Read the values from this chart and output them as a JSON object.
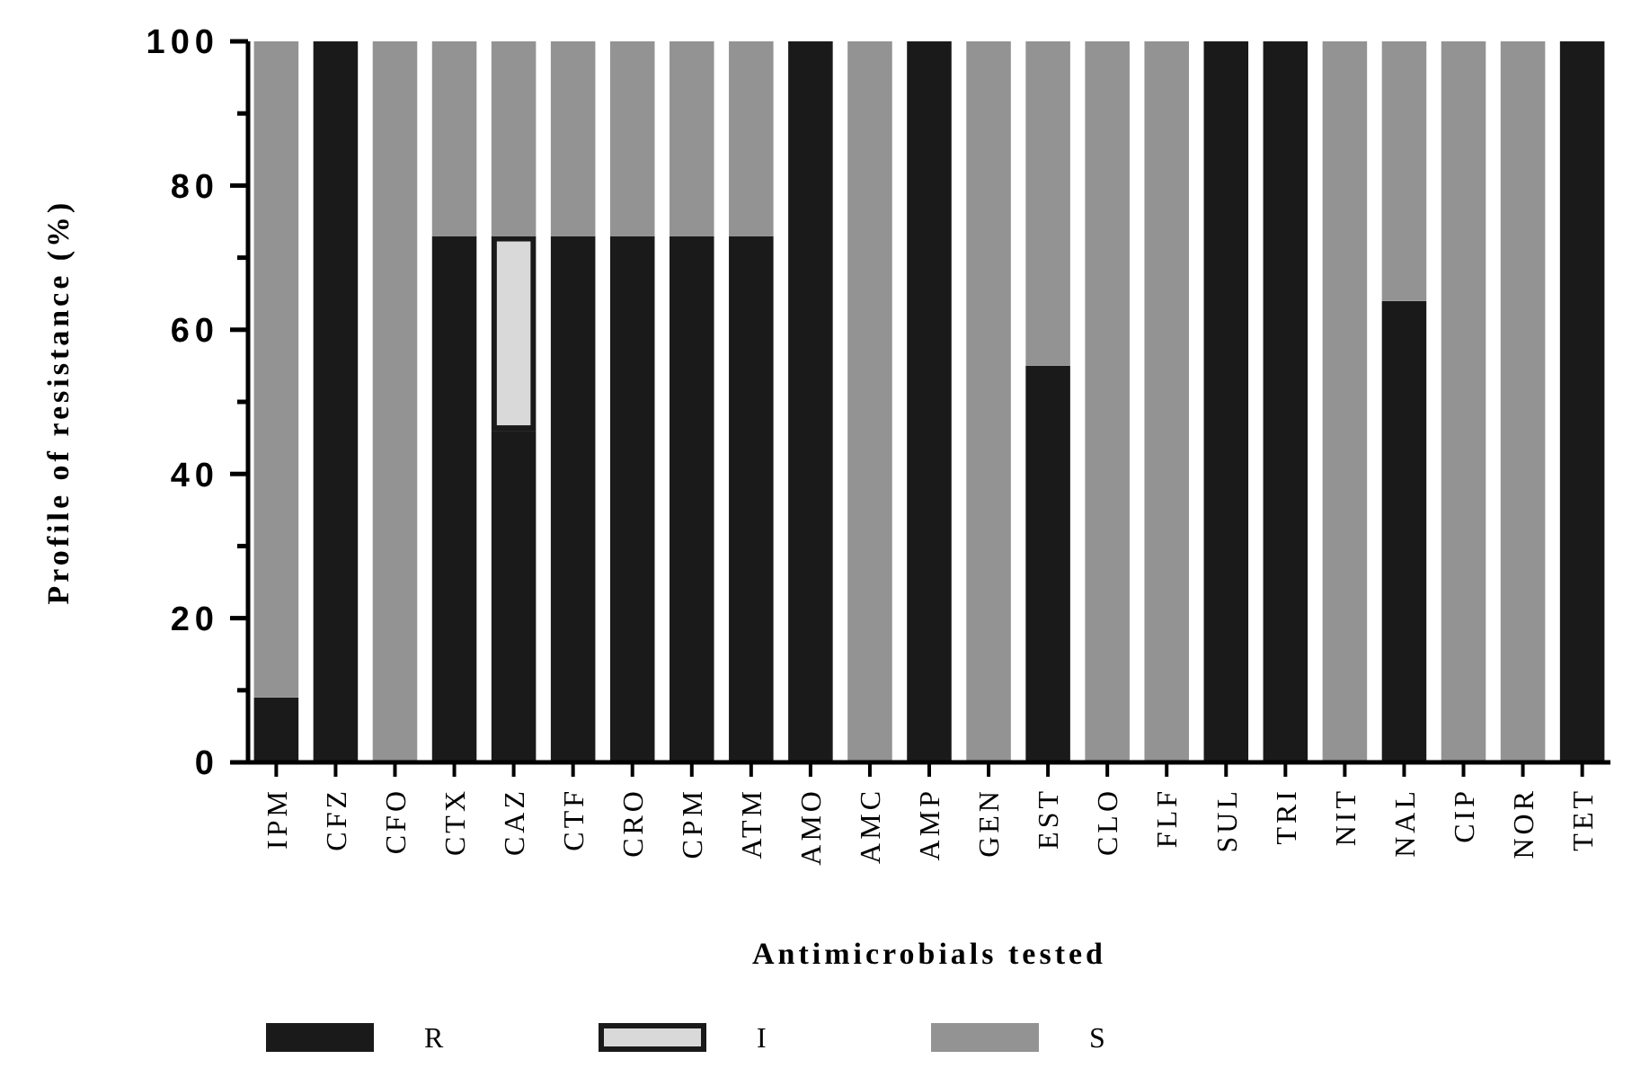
{
  "chart_data": {
    "type": "bar",
    "stacked": true,
    "xlabel": "Antimicrobials tested",
    "ylabel": "Profile of resistance (%)",
    "categories": [
      "IPM",
      "CFZ",
      "CFO",
      "CTX",
      "CAZ",
      "CTF",
      "CRO",
      "CPM",
      "ATM",
      "AMO",
      "AMC",
      "AMP",
      "GEN",
      "EST",
      "CLO",
      "FLF",
      "SUL",
      "TRI",
      "NIT",
      "NAL",
      "CIP",
      "NOR",
      "TET"
    ],
    "series": [
      {
        "name": "R",
        "color": "#1a1a1a",
        "values": [
          9,
          100,
          0,
          73,
          46,
          73,
          73,
          73,
          73,
          100,
          0,
          100,
          0,
          55,
          0,
          0,
          100,
          100,
          0,
          64,
          0,
          0,
          100
        ]
      },
      {
        "name": "I",
        "color": "#d9d9d9",
        "values": [
          0,
          0,
          0,
          0,
          27,
          0,
          0,
          0,
          0,
          0,
          0,
          0,
          0,
          0,
          0,
          0,
          0,
          0,
          0,
          0,
          0,
          0,
          0
        ]
      },
      {
        "name": "S",
        "color": "#939393",
        "values": [
          91,
          0,
          100,
          27,
          27,
          27,
          27,
          27,
          27,
          0,
          100,
          0,
          100,
          45,
          100,
          100,
          0,
          0,
          100,
          36,
          100,
          100,
          0
        ]
      }
    ],
    "ylim": [
      0,
      100
    ],
    "yticks": [
      0,
      {
        "value": 10,
        "label": null
      },
      20,
      {
        "value": 30,
        "label": null
      },
      40,
      {
        "value": 50,
        "label": null
      },
      60,
      {
        "value": 70,
        "label": null
      },
      80,
      {
        "value": 90,
        "label": null
      },
      100
    ],
    "legend": "bottom",
    "grid": false
  }
}
